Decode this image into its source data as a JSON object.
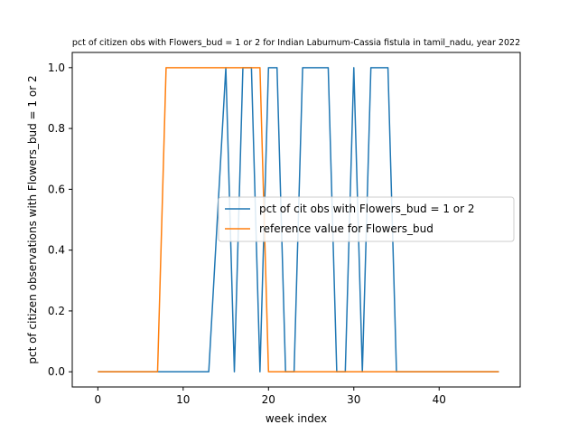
{
  "chart_data": {
    "type": "line",
    "title": "pct of citizen obs with Flowers_bud = 1 or 2 for Indian Laburnum-Cassia fistula in tamil_nadu, year 2022",
    "xlabel": "week index",
    "ylabel": "pct of citizen observations with Flowers_bud = 1 or 2",
    "xlim": [
      -3,
      49.5
    ],
    "ylim": [
      -0.05,
      1.05
    ],
    "xticks": [
      0,
      10,
      20,
      30,
      40
    ],
    "yticks": [
      0.0,
      0.2,
      0.4,
      0.6,
      0.8,
      1.0
    ],
    "xtick_labels": [
      "0",
      "10",
      "20",
      "30",
      "40"
    ],
    "ytick_labels": [
      "0.0",
      "0.2",
      "0.4",
      "0.6",
      "0.8",
      "1.0"
    ],
    "grid": false,
    "legend_position": "center-right",
    "series": [
      {
        "name": "pct of cit obs with Flowers_bud = 1 or 2",
        "color": "#1f77b4",
        "x": [
          0,
          1,
          2,
          3,
          4,
          5,
          6,
          7,
          8,
          9,
          10,
          11,
          12,
          13,
          14,
          15,
          16,
          17,
          18,
          19,
          20,
          21,
          22,
          23,
          24,
          25,
          26,
          27,
          28,
          29,
          30,
          31,
          32,
          33,
          34,
          35,
          36,
          37,
          38,
          39,
          40,
          41,
          42,
          43,
          44,
          45,
          46,
          47
        ],
        "y": [
          0,
          0,
          0,
          0,
          0,
          0,
          0,
          0,
          0,
          0,
          0,
          0,
          0,
          0,
          0.5,
          1,
          0,
          1,
          1,
          0,
          1,
          1,
          0,
          0,
          1,
          1,
          1,
          1,
          0,
          0,
          1,
          0,
          1,
          1,
          1,
          0,
          0,
          0,
          0,
          0,
          0,
          0,
          0,
          0,
          0,
          0,
          0,
          0
        ]
      },
      {
        "name": "reference value for Flowers_bud",
        "color": "#ff7f0e",
        "x": [
          0,
          1,
          2,
          3,
          4,
          5,
          6,
          7,
          8,
          9,
          10,
          11,
          12,
          13,
          14,
          15,
          16,
          17,
          18,
          19,
          20,
          21,
          22,
          23,
          24,
          25,
          26,
          27,
          28,
          29,
          30,
          31,
          32,
          33,
          34,
          35,
          36,
          37,
          38,
          39,
          40,
          41,
          42,
          43,
          44,
          45,
          46,
          47
        ],
        "y": [
          0,
          0,
          0,
          0,
          0,
          0,
          0,
          0,
          1,
          1,
          1,
          1,
          1,
          1,
          1,
          1,
          1,
          1,
          1,
          1,
          0,
          0,
          0,
          0,
          0,
          0,
          0,
          0,
          0,
          0,
          0,
          0,
          0,
          0,
          0,
          0,
          0,
          0,
          0,
          0,
          0,
          0,
          0,
          0,
          0,
          0,
          0,
          0
        ]
      }
    ]
  }
}
